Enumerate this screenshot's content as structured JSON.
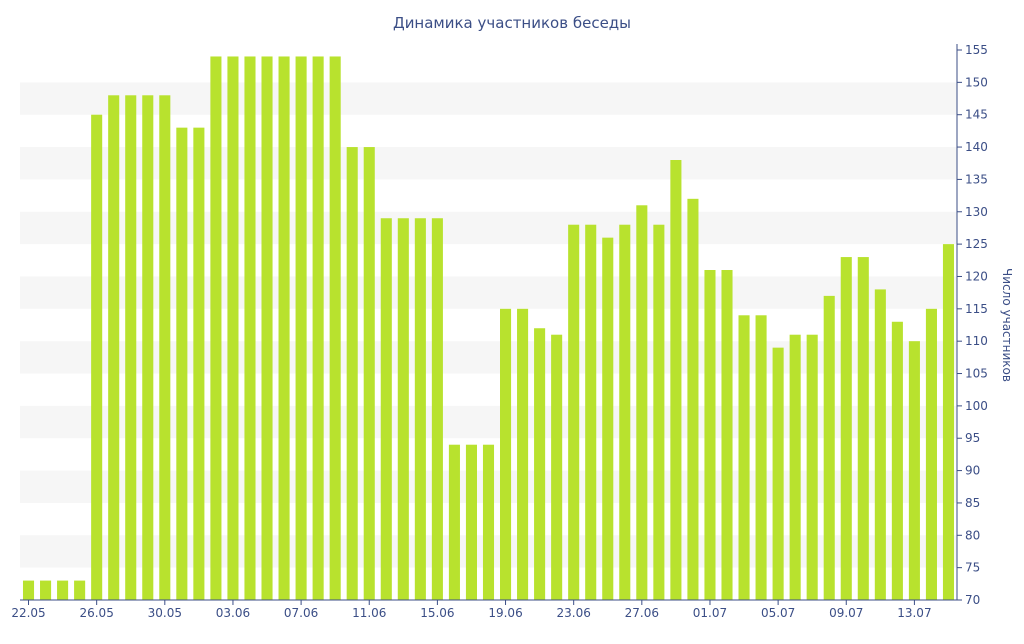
{
  "chart_data": {
    "type": "bar",
    "title": "Динамика участников беседы",
    "ylabel": "Число участников",
    "xlabel": "",
    "ylim": [
      70,
      155
    ],
    "yticks": [
      70,
      75,
      80,
      85,
      90,
      95,
      100,
      105,
      110,
      115,
      120,
      125,
      130,
      135,
      140,
      145,
      150,
      155
    ],
    "y_axis_side": "right",
    "grid": "alternating horizontal bands",
    "categories": [
      "22.05",
      "23.05",
      "24.05",
      "25.05",
      "26.05",
      "27.05",
      "28.05",
      "29.05",
      "30.05",
      "31.05",
      "01.06",
      "02.06",
      "03.06",
      "04.06",
      "05.06",
      "06.06",
      "07.06",
      "08.06",
      "09.06",
      "10.06",
      "11.06",
      "12.06",
      "13.06",
      "14.06",
      "15.06",
      "16.06",
      "17.06",
      "18.06",
      "19.06",
      "20.06",
      "21.06",
      "22.06",
      "23.06",
      "24.06",
      "25.06",
      "26.06",
      "27.06",
      "28.06",
      "29.06",
      "30.06",
      "01.07",
      "02.07",
      "03.07",
      "04.07",
      "05.07",
      "06.07",
      "07.07",
      "08.07",
      "09.07",
      "10.07",
      "11.07",
      "12.07",
      "13.07",
      "14.07",
      "15.07"
    ],
    "values": [
      73,
      73,
      73,
      73,
      145,
      148,
      148,
      148,
      148,
      143,
      143,
      154,
      154,
      154,
      154,
      154,
      154,
      154,
      154,
      140,
      140,
      129,
      129,
      129,
      129,
      94,
      94,
      94,
      115,
      115,
      112,
      111,
      128,
      128,
      126,
      128,
      131,
      128,
      138,
      132,
      121,
      121,
      114,
      114,
      109,
      111,
      111,
      117,
      123,
      123,
      118,
      113,
      110,
      115,
      125
    ],
    "xtick_labels": [
      {
        "index": 0,
        "label": "22.05"
      },
      {
        "index": 4,
        "label": "26.05"
      },
      {
        "index": 8,
        "label": "30.05"
      },
      {
        "index": 12,
        "label": "03.06"
      },
      {
        "index": 16,
        "label": "07.06"
      },
      {
        "index": 20,
        "label": "11.06"
      },
      {
        "index": 24,
        "label": "15.06"
      },
      {
        "index": 28,
        "label": "19.06"
      },
      {
        "index": 32,
        "label": "23.06"
      },
      {
        "index": 36,
        "label": "27.06"
      },
      {
        "index": 40,
        "label": "01.07"
      },
      {
        "index": 44,
        "label": "05.07"
      },
      {
        "index": 48,
        "label": "09.07"
      },
      {
        "index": 52,
        "label": "13.07"
      }
    ],
    "colors": {
      "bar": "#b8e22e",
      "band": "#f6f6f6",
      "text": "#3b4e86",
      "axis": "#3b4e86"
    }
  }
}
